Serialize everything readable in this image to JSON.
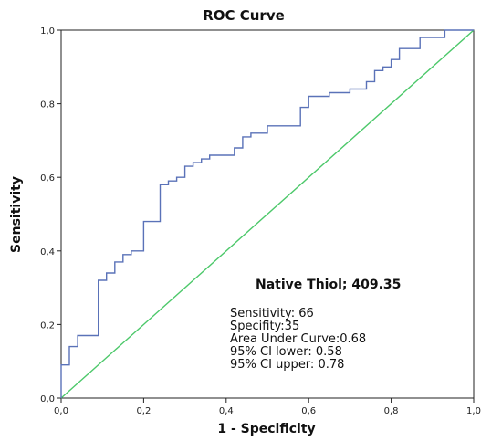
{
  "chart_data": {
    "type": "line",
    "title": "ROC Curve",
    "xlabel": "1 - Specificity",
    "ylabel": "Sensitivity",
    "xlim": [
      0,
      1
    ],
    "ylim": [
      0,
      1
    ],
    "x_ticks": [
      "0,0",
      "0,2",
      "0,4",
      "0,6",
      "0,8",
      "1,0"
    ],
    "y_ticks": [
      "0,0",
      "0,2",
      "0,4",
      "0,6",
      "0,8",
      "1,0"
    ],
    "grid": false,
    "colors": {
      "roc": "#5a72b8",
      "reference": "#4cc86a",
      "axes": "#222222"
    },
    "series": [
      {
        "values": [
          [
            0.0,
            0.0
          ],
          [
            0.0,
            0.09
          ],
          [
            0.02,
            0.09
          ],
          [
            0.02,
            0.14
          ],
          [
            0.04,
            0.14
          ],
          [
            0.04,
            0.17
          ],
          [
            0.09,
            0.17
          ],
          [
            0.09,
            0.32
          ],
          [
            0.11,
            0.32
          ],
          [
            0.11,
            0.34
          ],
          [
            0.13,
            0.34
          ],
          [
            0.13,
            0.37
          ],
          [
            0.15,
            0.37
          ],
          [
            0.15,
            0.39
          ],
          [
            0.17,
            0.39
          ],
          [
            0.17,
            0.4
          ],
          [
            0.2,
            0.4
          ],
          [
            0.2,
            0.48
          ],
          [
            0.24,
            0.48
          ],
          [
            0.24,
            0.58
          ],
          [
            0.26,
            0.58
          ],
          [
            0.26,
            0.59
          ],
          [
            0.28,
            0.59
          ],
          [
            0.28,
            0.6
          ],
          [
            0.3,
            0.6
          ],
          [
            0.3,
            0.63
          ],
          [
            0.32,
            0.63
          ],
          [
            0.32,
            0.64
          ],
          [
            0.34,
            0.64
          ],
          [
            0.34,
            0.65
          ],
          [
            0.36,
            0.65
          ],
          [
            0.36,
            0.66
          ],
          [
            0.42,
            0.66
          ],
          [
            0.42,
            0.68
          ],
          [
            0.44,
            0.68
          ],
          [
            0.44,
            0.71
          ],
          [
            0.46,
            0.71
          ],
          [
            0.46,
            0.72
          ],
          [
            0.5,
            0.72
          ],
          [
            0.5,
            0.74
          ],
          [
            0.58,
            0.74
          ],
          [
            0.58,
            0.79
          ],
          [
            0.6,
            0.79
          ],
          [
            0.6,
            0.82
          ],
          [
            0.65,
            0.82
          ],
          [
            0.65,
            0.83
          ],
          [
            0.7,
            0.83
          ],
          [
            0.7,
            0.84
          ],
          [
            0.74,
            0.84
          ],
          [
            0.74,
            0.86
          ],
          [
            0.76,
            0.86
          ],
          [
            0.76,
            0.89
          ],
          [
            0.78,
            0.89
          ],
          [
            0.78,
            0.9
          ],
          [
            0.8,
            0.9
          ],
          [
            0.8,
            0.92
          ],
          [
            0.82,
            0.92
          ],
          [
            0.82,
            0.95
          ],
          [
            0.87,
            0.95
          ],
          [
            0.87,
            0.98
          ],
          [
            0.93,
            0.98
          ],
          [
            0.93,
            1.0
          ],
          [
            1.0,
            1.0
          ]
        ]
      },
      {
        "values": [
          [
            0,
            0
          ],
          [
            1,
            1
          ]
        ]
      }
    ],
    "annotation": {
      "title": "Native Thiol; 409.35",
      "lines": [
        "Sensitivity: 66",
        "Specifity:35",
        "Area Under Curve:0.68",
        "95% CI lower: 0.58",
        "95% CI upper: 0.78"
      ]
    }
  }
}
